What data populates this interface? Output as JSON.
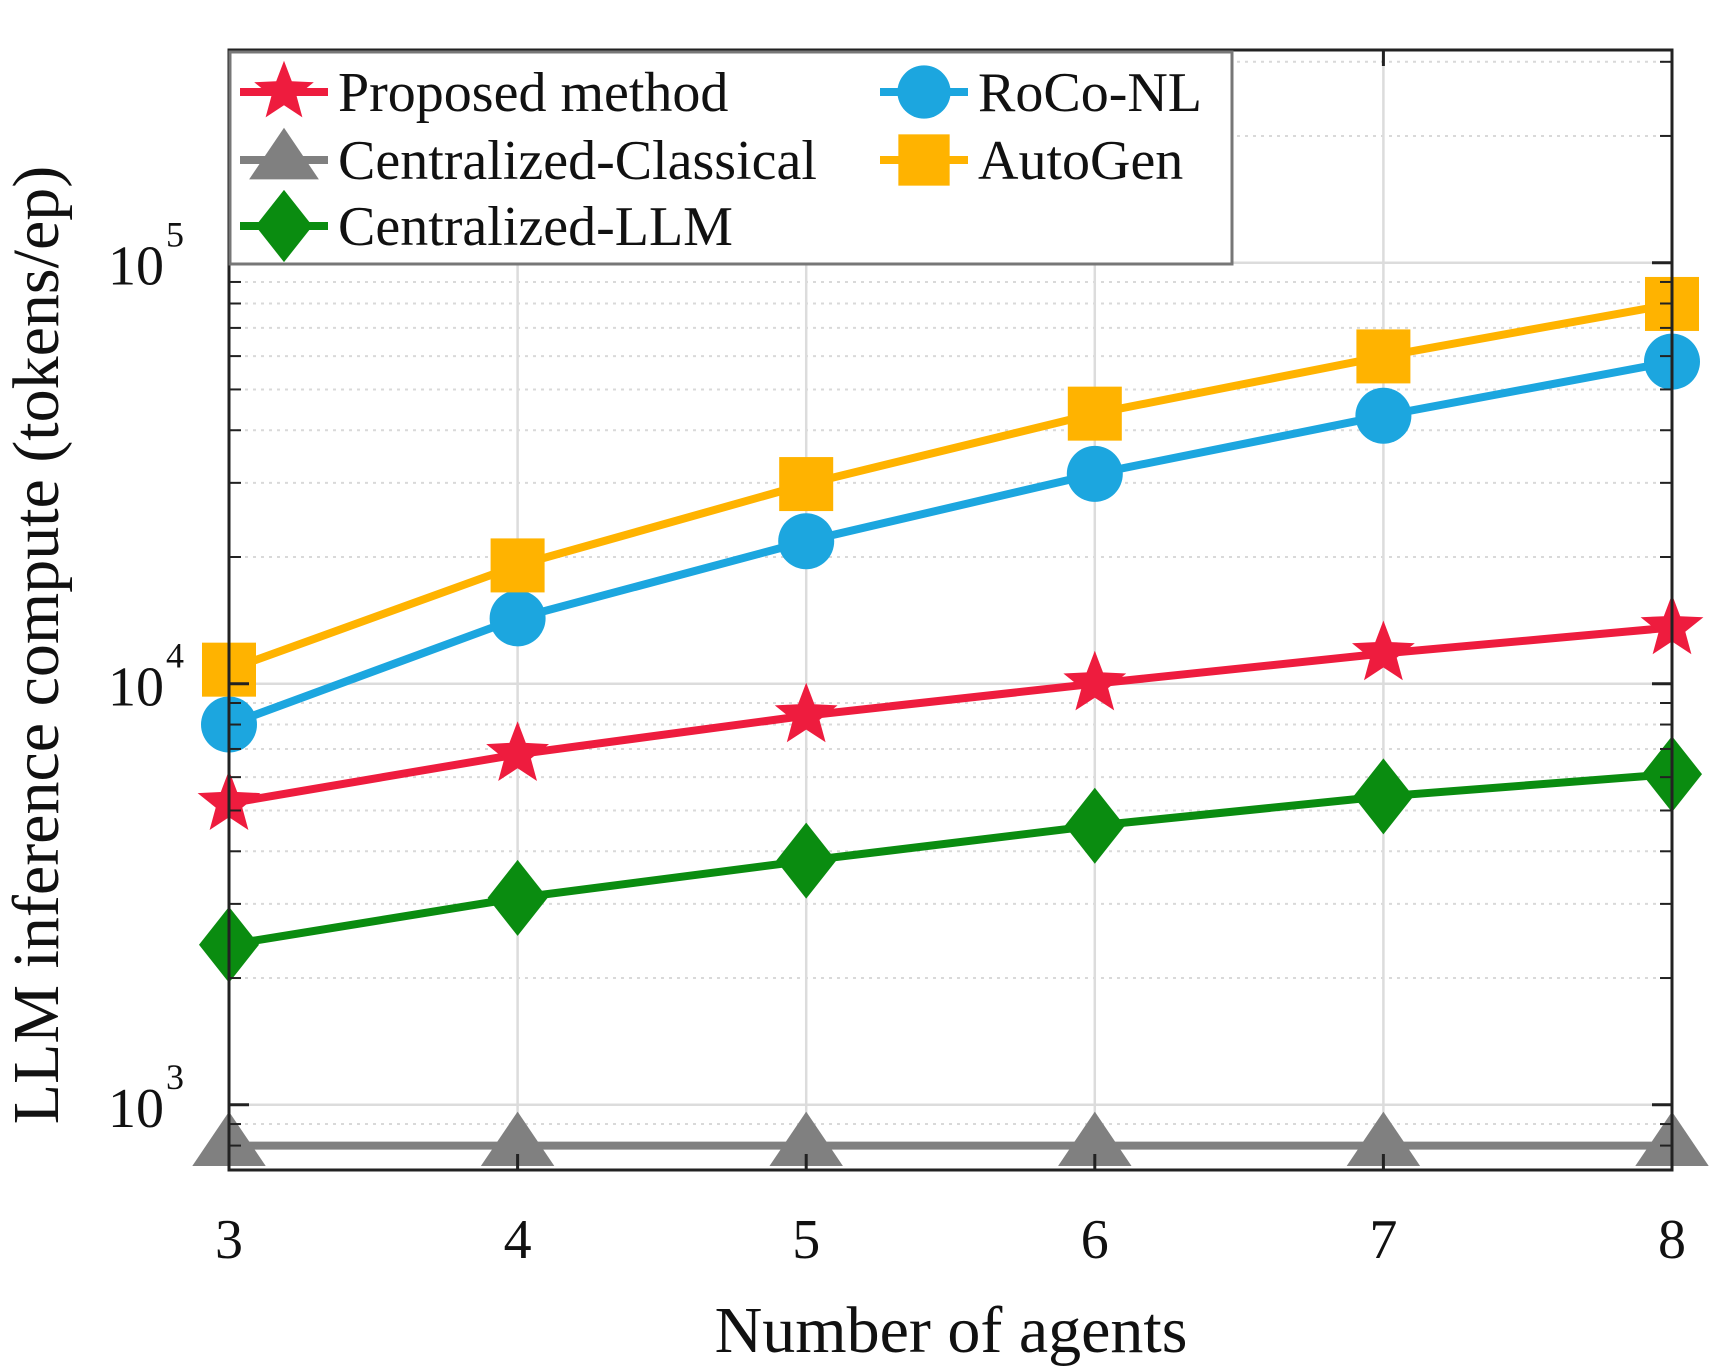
{
  "chart_data": {
    "type": "line",
    "title": "",
    "xlabel": "Number of agents",
    "ylabel": "LLM inference compute (tokens/ep)",
    "x": [
      3,
      4,
      5,
      6,
      7,
      8
    ],
    "x_tick_labels": [
      "3",
      "4",
      "5",
      "6",
      "7",
      "8"
    ],
    "xlim": [
      3,
      8
    ],
    "yscale": "log",
    "ylim": [
      700,
      320000
    ],
    "y_ticks": [
      {
        "value": 1000,
        "base": "10",
        "exp": "3"
      },
      {
        "value": 10000,
        "base": "10",
        "exp": "4"
      },
      {
        "value": 100000,
        "base": "10",
        "exp": "5"
      }
    ],
    "grid": true,
    "minor_grid": true,
    "legend_position": "top-left",
    "series": [
      {
        "name": "Proposed method",
        "color": "#EE1C3E",
        "marker": "star",
        "values": [
          5200,
          6800,
          8400,
          10000,
          11800,
          13600
        ]
      },
      {
        "name": "Centralized-Classical",
        "color": "#808080",
        "marker": "triangle",
        "values": [
          800,
          800,
          800,
          800,
          800,
          800
        ]
      },
      {
        "name": "Centralized-LLM",
        "color": "#0A8C10",
        "marker": "diamond",
        "values": [
          2400,
          3100,
          3800,
          4600,
          5400,
          6100
        ]
      },
      {
        "name": "RoCo-NL",
        "color": "#1CA6DF",
        "marker": "circle",
        "values": [
          8000,
          14300,
          21800,
          31500,
          43300,
          58200
        ]
      },
      {
        "name": "AutoGen",
        "color": "#FFB300",
        "marker": "square",
        "values": [
          10800,
          19100,
          29800,
          43800,
          59900,
          79800
        ]
      }
    ]
  }
}
